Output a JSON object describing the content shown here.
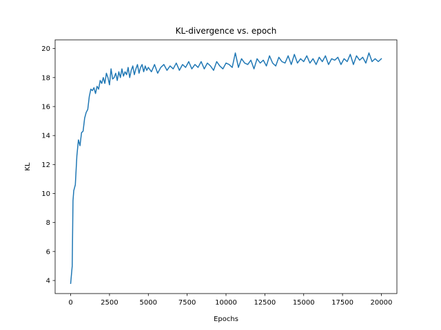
{
  "chart_data": {
    "type": "line",
    "title": "KL-divergence vs. epoch",
    "xlabel": "Epochs",
    "ylabel": "KL",
    "xlim": [
      -1000,
      21000
    ],
    "ylim": [
      3.1,
      20.6
    ],
    "xticks": [
      0,
      2500,
      5000,
      7500,
      10000,
      12500,
      15000,
      17500,
      20000
    ],
    "yticks": [
      4,
      6,
      8,
      10,
      12,
      14,
      16,
      18,
      20
    ],
    "grid": false,
    "line_color": "#1f77b4",
    "series": [
      {
        "x": [
          0,
          100,
          150,
          200,
          300,
          400,
          500,
          600,
          700,
          800,
          900,
          1000,
          1100,
          1200,
          1300,
          1400,
          1500,
          1600,
          1700,
          1800,
          1900,
          2000,
          2100,
          2200,
          2300,
          2400,
          2500,
          2600,
          2700,
          2800,
          2900,
          3000,
          3100,
          3200,
          3300,
          3400,
          3500,
          3600,
          3700,
          3800,
          3900,
          4000,
          4100,
          4200,
          4300,
          4400,
          4500,
          4600,
          4700,
          4800,
          4900,
          5000,
          5200,
          5400,
          5600,
          5800,
          6000,
          6200,
          6400,
          6600,
          6800,
          7000,
          7200,
          7400,
          7600,
          7800,
          8000,
          8200,
          8400,
          8600,
          8800,
          9000,
          9200,
          9400,
          9600,
          9800,
          10000,
          10200,
          10400,
          10600,
          10800,
          11000,
          11200,
          11400,
          11600,
          11800,
          12000,
          12200,
          12400,
          12600,
          12800,
          13000,
          13200,
          13400,
          13600,
          13800,
          14000,
          14200,
          14400,
          14600,
          14800,
          15000,
          15200,
          15400,
          15600,
          15800,
          16000,
          16200,
          16400,
          16600,
          16800,
          17000,
          17200,
          17400,
          17600,
          17800,
          18000,
          18200,
          18400,
          18600,
          18800,
          19000,
          19200,
          19400,
          19600,
          19800,
          20000
        ],
        "y": [
          3.8,
          5.0,
          9.5,
          10.2,
          10.6,
          12.6,
          13.7,
          13.3,
          14.2,
          14.3,
          15.2,
          15.6,
          15.8,
          16.7,
          17.2,
          17.1,
          17.3,
          16.9,
          17.4,
          17.2,
          17.8,
          17.6,
          18.0,
          17.6,
          18.3,
          18.0,
          17.5,
          18.6,
          17.9,
          18.0,
          18.3,
          17.8,
          18.4,
          18.0,
          18.6,
          18.1,
          18.4,
          18.2,
          18.7,
          18.0,
          18.5,
          18.8,
          18.2,
          18.6,
          18.9,
          18.3,
          18.7,
          18.9,
          18.4,
          18.8,
          18.5,
          18.7,
          18.4,
          18.9,
          18.3,
          18.7,
          18.9,
          18.5,
          18.8,
          18.6,
          19.0,
          18.5,
          18.9,
          18.7,
          19.1,
          18.6,
          18.9,
          18.7,
          19.1,
          18.6,
          19.0,
          18.8,
          18.5,
          19.1,
          18.8,
          18.6,
          19.0,
          18.9,
          18.7,
          19.7,
          18.7,
          19.3,
          19.0,
          18.9,
          19.2,
          18.6,
          19.3,
          19.0,
          19.2,
          18.8,
          19.5,
          19.0,
          18.8,
          19.4,
          19.1,
          19.0,
          19.5,
          18.9,
          19.6,
          19.0,
          19.3,
          19.1,
          19.5,
          19.0,
          19.3,
          18.9,
          19.4,
          19.1,
          19.5,
          18.9,
          19.3,
          19.2,
          19.4,
          18.9,
          19.3,
          19.1,
          19.6,
          18.9,
          19.5,
          19.2,
          19.4,
          19.0,
          19.7,
          19.1,
          19.3,
          19.1,
          19.3
        ]
      }
    ]
  }
}
